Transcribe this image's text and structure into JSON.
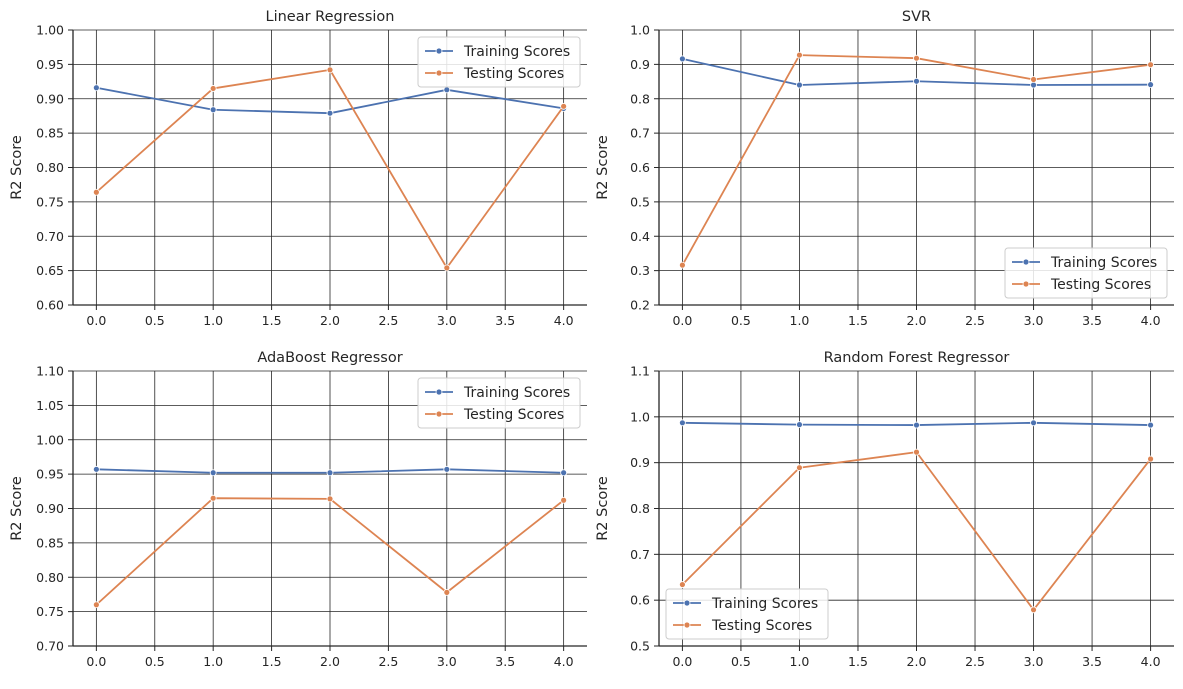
{
  "chart_data": [
    {
      "type": "line",
      "title": "Linear Regression",
      "xlabel": "",
      "ylabel": "R2 Score",
      "x": [
        0,
        1,
        2,
        3,
        4
      ],
      "xlim": [
        -0.2,
        4.2
      ],
      "xticks": [
        "0.0",
        "0.5",
        "1.0",
        "1.5",
        "2.0",
        "2.5",
        "3.0",
        "3.5",
        "4.0"
      ],
      "xtick_values": [
        0,
        0.5,
        1,
        1.5,
        2,
        2.5,
        3,
        3.5,
        4
      ],
      "ylim": [
        0.6,
        1.0
      ],
      "yticks": [
        "0.60",
        "0.65",
        "0.70",
        "0.75",
        "0.80",
        "0.85",
        "0.90",
        "0.95",
        "1.00"
      ],
      "ytick_values": [
        0.6,
        0.65,
        0.7,
        0.75,
        0.8,
        0.85,
        0.9,
        0.95,
        1.0
      ],
      "grid": true,
      "legend_position": "top-right",
      "series": [
        {
          "name": "Training Scores",
          "values": [
            0.916,
            0.884,
            0.879,
            0.913,
            0.886
          ]
        },
        {
          "name": "Testing Scores",
          "values": [
            0.764,
            0.915,
            0.942,
            0.654,
            0.889
          ]
        }
      ]
    },
    {
      "type": "line",
      "title": "SVR",
      "xlabel": "",
      "ylabel": "R2 Score",
      "x": [
        0,
        1,
        2,
        3,
        4
      ],
      "xlim": [
        -0.2,
        4.2
      ],
      "xticks": [
        "0.0",
        "0.5",
        "1.0",
        "1.5",
        "2.0",
        "2.5",
        "3.0",
        "3.5",
        "4.0"
      ],
      "xtick_values": [
        0,
        0.5,
        1,
        1.5,
        2,
        2.5,
        3,
        3.5,
        4
      ],
      "ylim": [
        0.2,
        1.0
      ],
      "yticks": [
        "0.2",
        "0.3",
        "0.4",
        "0.5",
        "0.6",
        "0.7",
        "0.8",
        "0.9",
        "1.0"
      ],
      "ytick_values": [
        0.2,
        0.3,
        0.4,
        0.5,
        0.6,
        0.7,
        0.8,
        0.9,
        1.0
      ],
      "grid": true,
      "legend_position": "bottom-right",
      "series": [
        {
          "name": "Training Scores",
          "values": [
            0.916,
            0.84,
            0.851,
            0.84,
            0.841
          ]
        },
        {
          "name": "Testing Scores",
          "values": [
            0.316,
            0.927,
            0.918,
            0.856,
            0.899
          ]
        }
      ]
    },
    {
      "type": "line",
      "title": "AdaBoost Regressor",
      "xlabel": "",
      "ylabel": "R2 Score",
      "x": [
        0,
        1,
        2,
        3,
        4
      ],
      "xlim": [
        -0.2,
        4.2
      ],
      "xticks": [
        "0.0",
        "0.5",
        "1.0",
        "1.5",
        "2.0",
        "2.5",
        "3.0",
        "3.5",
        "4.0"
      ],
      "xtick_values": [
        0,
        0.5,
        1,
        1.5,
        2,
        2.5,
        3,
        3.5,
        4
      ],
      "ylim": [
        0.7,
        1.1
      ],
      "yticks": [
        "0.70",
        "0.75",
        "0.80",
        "0.85",
        "0.90",
        "0.95",
        "1.00",
        "1.05",
        "1.10"
      ],
      "ytick_values": [
        0.7,
        0.75,
        0.8,
        0.85,
        0.9,
        0.95,
        1.0,
        1.05,
        1.1
      ],
      "grid": true,
      "legend_position": "top-right",
      "series": [
        {
          "name": "Training Scores",
          "values": [
            0.957,
            0.952,
            0.952,
            0.957,
            0.952
          ]
        },
        {
          "name": "Testing Scores",
          "values": [
            0.76,
            0.915,
            0.914,
            0.778,
            0.912
          ]
        }
      ]
    },
    {
      "type": "line",
      "title": "Random Forest Regressor",
      "xlabel": "",
      "ylabel": "R2 Score",
      "x": [
        0,
        1,
        2,
        3,
        4
      ],
      "xlim": [
        -0.2,
        4.2
      ],
      "xticks": [
        "0.0",
        "0.5",
        "1.0",
        "1.5",
        "2.0",
        "2.5",
        "3.0",
        "3.5",
        "4.0"
      ],
      "xtick_values": [
        0,
        0.5,
        1,
        1.5,
        2,
        2.5,
        3,
        3.5,
        4
      ],
      "ylim": [
        0.5,
        1.1
      ],
      "yticks": [
        "0.5",
        "0.6",
        "0.7",
        "0.8",
        "0.9",
        "1.0",
        "1.1"
      ],
      "ytick_values": [
        0.5,
        0.6,
        0.7,
        0.8,
        0.9,
        1.0,
        1.1
      ],
      "grid": true,
      "legend_position": "bottom-left",
      "series": [
        {
          "name": "Training Scores",
          "values": [
            0.987,
            0.983,
            0.982,
            0.987,
            0.982
          ]
        },
        {
          "name": "Testing Scores",
          "values": [
            0.634,
            0.889,
            0.923,
            0.579,
            0.908
          ]
        }
      ]
    }
  ],
  "colors": {
    "training": "#4c72b0",
    "testing": "#dd8452",
    "grid": "#262626",
    "axis": "#262626",
    "legend_border": "#cccccc"
  }
}
